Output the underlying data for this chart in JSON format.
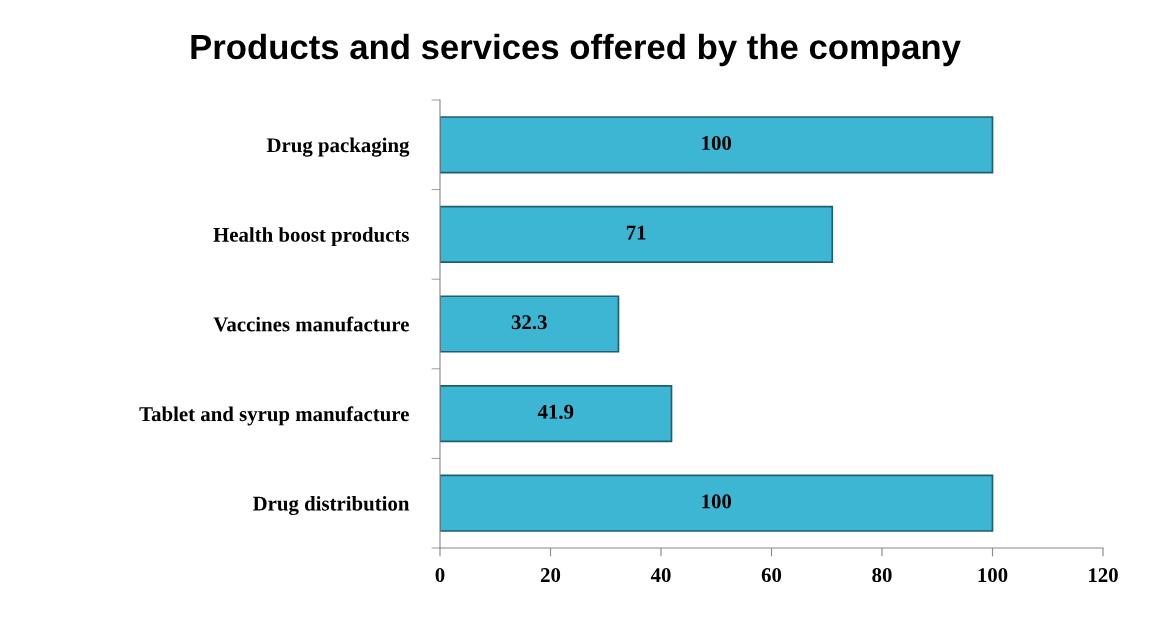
{
  "chart_data": {
    "type": "bar",
    "orientation": "horizontal",
    "title": "Products and services offered by the company",
    "categories": [
      "Drug packaging",
      "Health boost products",
      "Vaccines manufacture",
      "Tablet and syrup manufacture",
      "Drug distribution"
    ],
    "values": [
      100,
      71,
      32.3,
      41.9,
      100
    ],
    "color": "#3cb6d3",
    "xlim": [
      0,
      120
    ],
    "xticks": [
      0,
      20,
      40,
      60,
      80,
      100,
      120
    ],
    "grid": false,
    "data_labels": true,
    "legend": false
  }
}
